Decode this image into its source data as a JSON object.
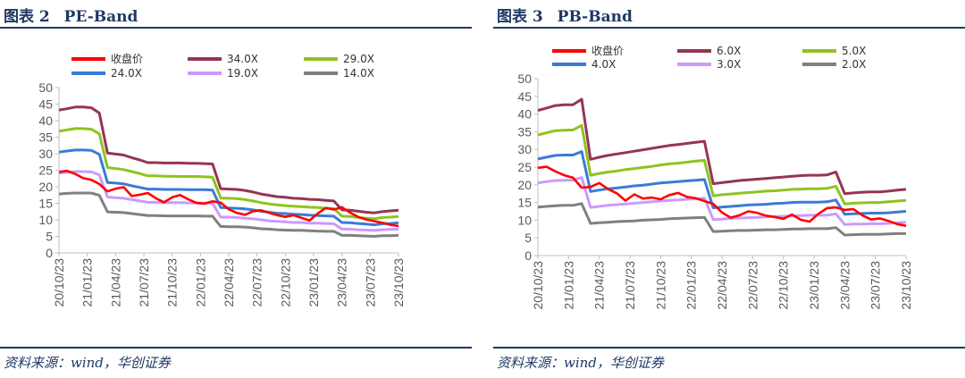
{
  "figures": [
    {
      "title_prefix": "图表 2",
      "title_name": "PE-Band",
      "source": "资料来源：wind，华创证券"
    },
    {
      "title_prefix": "图表 3",
      "title_name": "PB-Band",
      "source": "资料来源：wind，华创证券"
    }
  ],
  "chart_data": [
    {
      "type": "line",
      "title": "PE-Band",
      "xlabel": "",
      "ylabel": "",
      "ylim": [
        0,
        50
      ],
      "yticks": [
        0,
        5,
        10,
        15,
        20,
        25,
        30,
        35,
        40,
        45,
        50
      ],
      "xtick_labels": [
        "20/10/23",
        "21/01/23",
        "21/04/23",
        "21/07/23",
        "21/10/23",
        "22/01/23",
        "22/04/23",
        "22/07/23",
        "22/10/23",
        "23/01/23",
        "23/04/23",
        "23/07/23",
        "23/10/23"
      ],
      "grid": false,
      "legend": "top",
      "series": [
        {
          "name": "收盘价",
          "color": "#ff0000",
          "values": [
            24.5,
            24.8,
            23.9,
            22.6,
            22.1,
            20.8,
            18.6,
            19.4,
            19.9,
            17.2,
            17.6,
            18.1,
            16.5,
            15.3,
            16.8,
            17.5,
            16.2,
            15.1,
            14.9,
            15.6,
            15.2,
            13.2,
            12.1,
            11.5,
            12.6,
            12.9,
            12.1,
            11.4,
            10.9,
            11.4,
            10.6,
            9.8,
            11.9,
            13.6,
            13.1,
            13.8,
            12.2,
            10.9,
            10.1,
            9.6,
            9.1,
            8.5,
            8.1
          ]
        },
        {
          "name": "34.0X",
          "color": "#953553",
          "values": [
            43.2,
            43.6,
            44.1,
            44.1,
            43.9,
            42.3,
            30.2,
            29.9,
            29.6,
            28.8,
            28.1,
            27.3,
            27.3,
            27.2,
            27.2,
            27.2,
            27.1,
            27.1,
            27.0,
            26.9,
            19.4,
            19.3,
            19.2,
            18.9,
            18.4,
            17.8,
            17.4,
            17.0,
            16.8,
            16.5,
            16.4,
            16.2,
            16.1,
            15.9,
            15.7,
            13.0,
            12.9,
            12.6,
            12.3,
            12.1,
            12.5,
            12.7,
            12.9
          ]
        },
        {
          "name": "29.0X",
          "color": "#8fc31f",
          "values": [
            36.8,
            37.2,
            37.6,
            37.6,
            37.4,
            36.0,
            25.8,
            25.5,
            25.2,
            24.6,
            24.0,
            23.3,
            23.3,
            23.2,
            23.2,
            23.1,
            23.1,
            23.1,
            23.0,
            22.9,
            16.6,
            16.5,
            16.4,
            16.1,
            15.7,
            15.2,
            14.8,
            14.5,
            14.3,
            14.1,
            14.0,
            13.8,
            13.7,
            13.5,
            13.4,
            11.1,
            11.0,
            10.7,
            10.5,
            10.3,
            10.7,
            10.8,
            11.0
          ]
        },
        {
          "name": "24.0X",
          "color": "#3a7bd5",
          "values": [
            30.5,
            30.8,
            31.1,
            31.1,
            31.0,
            29.8,
            21.3,
            21.1,
            20.9,
            20.3,
            19.8,
            19.3,
            19.3,
            19.2,
            19.2,
            19.2,
            19.1,
            19.1,
            19.1,
            19.0,
            13.7,
            13.6,
            13.5,
            13.3,
            13.0,
            12.6,
            12.3,
            12.0,
            11.9,
            11.7,
            11.6,
            11.4,
            11.3,
            11.2,
            11.1,
            9.2,
            9.1,
            8.9,
            8.7,
            8.5,
            8.8,
            8.9,
            9.1
          ]
        },
        {
          "name": "19.0X",
          "color": "#cc99ff",
          "values": [
            24.1,
            24.4,
            24.6,
            24.6,
            24.5,
            23.6,
            16.9,
            16.7,
            16.5,
            16.1,
            15.7,
            15.3,
            15.3,
            15.2,
            15.2,
            15.2,
            15.1,
            15.1,
            15.1,
            15.0,
            10.8,
            10.8,
            10.7,
            10.5,
            10.3,
            10.0,
            9.7,
            9.5,
            9.4,
            9.2,
            9.2,
            9.0,
            9.0,
            8.9,
            8.8,
            7.2,
            7.2,
            7.0,
            6.9,
            6.8,
            7.0,
            7.1,
            7.2
          ]
        },
        {
          "name": "14.0X",
          "color": "#808080",
          "values": [
            17.8,
            18.0,
            18.1,
            18.1,
            18.1,
            17.4,
            12.4,
            12.3,
            12.2,
            11.9,
            11.6,
            11.3,
            11.3,
            11.2,
            11.2,
            11.2,
            11.2,
            11.2,
            11.1,
            11.1,
            8.0,
            7.9,
            7.9,
            7.8,
            7.6,
            7.3,
            7.2,
            7.0,
            6.9,
            6.8,
            6.8,
            6.7,
            6.6,
            6.5,
            6.5,
            5.3,
            5.3,
            5.2,
            5.1,
            5.0,
            5.2,
            5.2,
            5.3
          ]
        }
      ]
    },
    {
      "type": "line",
      "title": "PB-Band",
      "xlabel": "",
      "ylabel": "",
      "ylim": [
        0,
        50
      ],
      "yticks": [
        0,
        5,
        10,
        15,
        20,
        25,
        30,
        35,
        40,
        45,
        50
      ],
      "xtick_labels": [
        "20/10/23",
        "21/01/23",
        "21/04/23",
        "21/07/23",
        "21/10/23",
        "22/01/23",
        "22/04/23",
        "22/07/23",
        "22/10/23",
        "23/01/23",
        "23/04/23",
        "23/07/23",
        "23/10/23"
      ],
      "grid": false,
      "legend": "top",
      "series": [
        {
          "name": "收盘价",
          "color": "#ff0000",
          "values": [
            24.8,
            25.1,
            23.8,
            22.7,
            22.0,
            19.2,
            19.4,
            20.5,
            18.8,
            17.6,
            15.5,
            17.3,
            16.1,
            16.4,
            15.9,
            17.1,
            17.7,
            16.6,
            16.2,
            15.4,
            14.6,
            12.2,
            10.7,
            11.4,
            12.5,
            12.1,
            11.3,
            10.9,
            10.4,
            11.6,
            10.1,
            9.6,
            11.8,
            13.4,
            13.6,
            12.9,
            13.1,
            11.4,
            10.2,
            10.5,
            9.8,
            8.9,
            8.4
          ]
        },
        {
          "name": "6.0X",
          "color": "#953553",
          "values": [
            41.0,
            41.7,
            42.4,
            42.6,
            42.6,
            44.2,
            27.2,
            27.8,
            28.3,
            28.7,
            29.1,
            29.5,
            29.9,
            30.3,
            30.7,
            31.1,
            31.4,
            31.7,
            32.0,
            32.3,
            20.3,
            20.6,
            20.9,
            21.2,
            21.4,
            21.6,
            21.8,
            22.0,
            22.2,
            22.4,
            22.6,
            22.7,
            22.7,
            22.8,
            23.6,
            17.5,
            17.7,
            17.9,
            18.0,
            18.0,
            18.2,
            18.5,
            18.7
          ]
        },
        {
          "name": "5.0X",
          "color": "#8fc31f",
          "values": [
            34.1,
            34.7,
            35.3,
            35.4,
            35.5,
            36.8,
            22.7,
            23.2,
            23.6,
            23.9,
            24.3,
            24.6,
            24.9,
            25.2,
            25.6,
            25.9,
            26.1,
            26.4,
            26.7,
            26.9,
            16.9,
            17.2,
            17.4,
            17.6,
            17.8,
            18.0,
            18.2,
            18.3,
            18.5,
            18.7,
            18.8,
            18.9,
            18.9,
            19.0,
            19.6,
            14.6,
            14.8,
            14.9,
            15.0,
            15.0,
            15.2,
            15.4,
            15.6
          ]
        },
        {
          "name": "4.0X",
          "color": "#3a7bd5",
          "values": [
            27.3,
            27.8,
            28.3,
            28.4,
            28.4,
            29.4,
            18.1,
            18.5,
            18.9,
            19.1,
            19.4,
            19.7,
            19.9,
            20.2,
            20.5,
            20.7,
            20.9,
            21.1,
            21.3,
            21.5,
            13.5,
            13.7,
            13.9,
            14.1,
            14.3,
            14.4,
            14.5,
            14.7,
            14.8,
            15.0,
            15.1,
            15.1,
            15.1,
            15.2,
            15.7,
            11.7,
            11.8,
            11.9,
            12.0,
            12.0,
            12.1,
            12.3,
            12.5
          ]
        },
        {
          "name": "3.0X",
          "color": "#cc99ff",
          "values": [
            20.5,
            20.9,
            21.2,
            21.3,
            21.3,
            22.1,
            13.6,
            13.9,
            14.2,
            14.4,
            14.6,
            14.8,
            15.0,
            15.2,
            15.4,
            15.6,
            15.7,
            15.9,
            16.0,
            16.2,
            10.2,
            10.3,
            10.5,
            10.6,
            10.7,
            10.8,
            10.9,
            11.0,
            11.1,
            11.2,
            11.3,
            11.4,
            11.4,
            11.4,
            11.8,
            8.8,
            8.9,
            8.9,
            9.0,
            9.0,
            9.1,
            9.3,
            9.4
          ]
        },
        {
          "name": "2.0X",
          "color": "#808080",
          "values": [
            13.7,
            13.9,
            14.1,
            14.2,
            14.2,
            14.7,
            9.1,
            9.3,
            9.4,
            9.6,
            9.7,
            9.8,
            10.0,
            10.1,
            10.2,
            10.4,
            10.5,
            10.6,
            10.7,
            10.8,
            6.8,
            6.9,
            7.0,
            7.1,
            7.1,
            7.2,
            7.3,
            7.3,
            7.4,
            7.5,
            7.5,
            7.6,
            7.6,
            7.6,
            7.9,
            5.8,
            5.9,
            6.0,
            6.0,
            6.0,
            6.1,
            6.2,
            6.2
          ]
        }
      ]
    }
  ]
}
